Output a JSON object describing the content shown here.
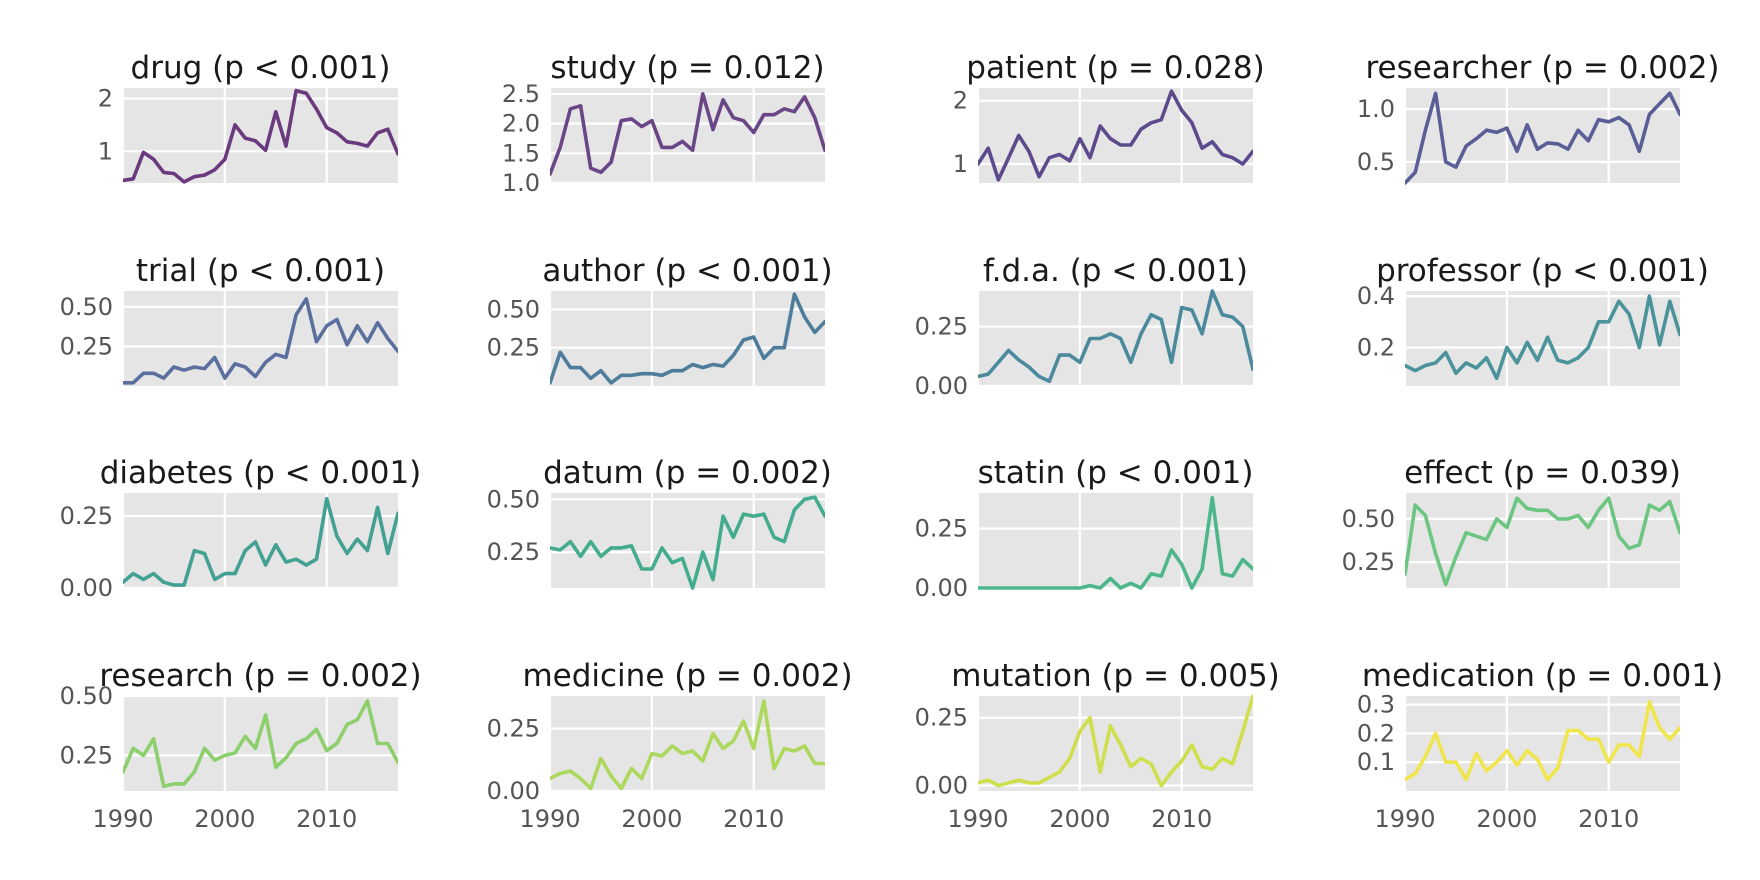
{
  "chart_data": {
    "type": "line",
    "layout": "small-multiples-4x4",
    "shared_x": true,
    "x_years": [
      1990,
      1991,
      1992,
      1993,
      1994,
      1995,
      1996,
      1997,
      1998,
      1999,
      2000,
      2001,
      2002,
      2003,
      2004,
      2005,
      2006,
      2007,
      2008,
      2009,
      2010,
      2011,
      2012,
      2013,
      2014,
      2015,
      2016,
      2017
    ],
    "xlim": [
      1990,
      2017
    ],
    "xticks": [
      1990,
      2000,
      2010
    ],
    "xtick_labels": [
      "1990",
      "2000",
      "2010"
    ],
    "grid": true,
    "background": "#e5e5e5",
    "panels": [
      {
        "title": "drug (p < 0.001)",
        "color": "#6b3a7e",
        "ylim": [
          0.4,
          2.2
        ],
        "yticks": [
          1,
          2
        ],
        "ytick_labels": [
          "1",
          "2"
        ],
        "values": [
          0.45,
          0.48,
          0.98,
          0.85,
          0.6,
          0.58,
          0.42,
          0.52,
          0.55,
          0.65,
          0.85,
          1.5,
          1.25,
          1.2,
          1.02,
          1.75,
          1.1,
          2.15,
          2.1,
          1.8,
          1.45,
          1.35,
          1.18,
          1.15,
          1.1,
          1.35,
          1.42,
          0.95
        ]
      },
      {
        "title": "study (p = 0.012)",
        "color": "#6a4686",
        "ylim": [
          1.0,
          2.6
        ],
        "yticks": [
          1.0,
          1.5,
          2.0,
          2.5
        ],
        "ytick_labels": [
          "1.0",
          "1.5",
          "2.0",
          "2.5"
        ],
        "values": [
          1.15,
          1.6,
          2.25,
          2.3,
          1.25,
          1.18,
          1.35,
          2.05,
          2.08,
          1.95,
          2.05,
          1.6,
          1.6,
          1.7,
          1.55,
          2.5,
          1.9,
          2.4,
          2.1,
          2.05,
          1.85,
          2.15,
          2.15,
          2.25,
          2.2,
          2.45,
          2.1,
          1.55
        ]
      },
      {
        "title": "patient (p = 0.028)",
        "color": "#5d4a8c",
        "ylim": [
          0.7,
          2.2
        ],
        "yticks": [
          1,
          2
        ],
        "ytick_labels": [
          "1",
          "2"
        ],
        "values": [
          1.0,
          1.25,
          0.75,
          1.1,
          1.45,
          1.2,
          0.8,
          1.1,
          1.15,
          1.05,
          1.4,
          1.1,
          1.6,
          1.4,
          1.3,
          1.3,
          1.55,
          1.65,
          1.7,
          2.15,
          1.85,
          1.65,
          1.25,
          1.35,
          1.15,
          1.1,
          1.0,
          1.2
        ]
      },
      {
        "title": "researcher (p = 0.002)",
        "color": "#5a5e96",
        "ylim": [
          0.3,
          1.2
        ],
        "yticks": [
          0.5,
          1.0
        ],
        "ytick_labels": [
          "0.5",
          "1.0"
        ],
        "values": [
          0.3,
          0.4,
          0.8,
          1.15,
          0.5,
          0.45,
          0.65,
          0.72,
          0.8,
          0.78,
          0.82,
          0.6,
          0.85,
          0.62,
          0.68,
          0.67,
          0.62,
          0.8,
          0.7,
          0.9,
          0.88,
          0.92,
          0.85,
          0.6,
          0.95,
          1.05,
          1.15,
          0.95
        ]
      },
      {
        "title": "trial (p < 0.001)",
        "color": "#5a6f9e",
        "ylim": [
          0.0,
          0.6
        ],
        "yticks": [
          0.25,
          0.5
        ],
        "ytick_labels": [
          "0.25",
          "0.50"
        ],
        "values": [
          0.02,
          0.02,
          0.08,
          0.08,
          0.05,
          0.12,
          0.1,
          0.12,
          0.11,
          0.18,
          0.05,
          0.14,
          0.12,
          0.06,
          0.15,
          0.2,
          0.18,
          0.45,
          0.55,
          0.28,
          0.38,
          0.42,
          0.26,
          0.38,
          0.28,
          0.4,
          0.3,
          0.22
        ]
      },
      {
        "title": "author (p < 0.001)",
        "color": "#4e7d9c",
        "ylim": [
          0.0,
          0.62
        ],
        "yticks": [
          0.25,
          0.5
        ],
        "ytick_labels": [
          "0.25",
          "0.50"
        ],
        "values": [
          0.02,
          0.22,
          0.12,
          0.12,
          0.05,
          0.1,
          0.02,
          0.07,
          0.07,
          0.08,
          0.08,
          0.07,
          0.1,
          0.1,
          0.14,
          0.12,
          0.14,
          0.13,
          0.2,
          0.3,
          0.32,
          0.18,
          0.25,
          0.25,
          0.6,
          0.45,
          0.35,
          0.42
        ]
      },
      {
        "title": "f.d.a. (p < 0.001)",
        "color": "#4b8a9d",
        "ylim": [
          0.0,
          0.4
        ],
        "yticks": [
          0.0,
          0.25
        ],
        "ytick_labels": [
          "0.00",
          "0.25"
        ],
        "values": [
          0.04,
          0.05,
          0.1,
          0.15,
          0.11,
          0.08,
          0.04,
          0.02,
          0.13,
          0.13,
          0.1,
          0.2,
          0.2,
          0.22,
          0.2,
          0.1,
          0.22,
          0.3,
          0.28,
          0.1,
          0.33,
          0.32,
          0.22,
          0.4,
          0.3,
          0.29,
          0.25,
          0.07
        ]
      },
      {
        "title": "professor (p < 0.001)",
        "color": "#4a939b",
        "ylim": [
          0.05,
          0.42
        ],
        "yticks": [
          0.2,
          0.4
        ],
        "ytick_labels": [
          "0.2",
          "0.4"
        ],
        "values": [
          0.13,
          0.11,
          0.13,
          0.14,
          0.18,
          0.1,
          0.14,
          0.12,
          0.16,
          0.08,
          0.2,
          0.14,
          0.22,
          0.15,
          0.24,
          0.15,
          0.14,
          0.16,
          0.2,
          0.3,
          0.3,
          0.38,
          0.33,
          0.2,
          0.4,
          0.21,
          0.38,
          0.25
        ]
      },
      {
        "title": "diabetes (p < 0.001)",
        "color": "#42a192",
        "ylim": [
          0.0,
          0.33
        ],
        "yticks": [
          0.0,
          0.25
        ],
        "ytick_labels": [
          "0.00",
          "0.25"
        ],
        "values": [
          0.02,
          0.05,
          0.03,
          0.05,
          0.02,
          0.01,
          0.01,
          0.13,
          0.12,
          0.03,
          0.05,
          0.05,
          0.13,
          0.16,
          0.08,
          0.15,
          0.09,
          0.1,
          0.08,
          0.1,
          0.31,
          0.18,
          0.12,
          0.17,
          0.13,
          0.28,
          0.12,
          0.26
        ]
      },
      {
        "title": "datum (p = 0.002)",
        "color": "#44ac8e",
        "ylim": [
          0.08,
          0.53
        ],
        "yticks": [
          0.25,
          0.5
        ],
        "ytick_labels": [
          "0.25",
          "0.50"
        ],
        "values": [
          0.27,
          0.26,
          0.3,
          0.23,
          0.3,
          0.23,
          0.27,
          0.27,
          0.28,
          0.17,
          0.17,
          0.27,
          0.2,
          0.22,
          0.08,
          0.25,
          0.12,
          0.42,
          0.32,
          0.43,
          0.42,
          0.43,
          0.32,
          0.3,
          0.45,
          0.5,
          0.51,
          0.42
        ]
      },
      {
        "title": "statin (p < 0.001)",
        "color": "#4db68a",
        "ylim": [
          0.0,
          0.4
        ],
        "yticks": [
          0.0,
          0.25
        ],
        "ytick_labels": [
          "0.00",
          "0.25"
        ],
        "values": [
          0.0,
          0.0,
          0.0,
          0.0,
          0.0,
          0.0,
          0.0,
          0.0,
          0.0,
          0.0,
          0.0,
          0.01,
          0.0,
          0.04,
          0.0,
          0.02,
          0.0,
          0.06,
          0.05,
          0.16,
          0.1,
          0.0,
          0.08,
          0.38,
          0.06,
          0.05,
          0.12,
          0.08
        ]
      },
      {
        "title": "effect (p = 0.039)",
        "color": "#6cc682",
        "ylim": [
          0.1,
          0.65
        ],
        "yticks": [
          0.25,
          0.5
        ],
        "ytick_labels": [
          "0.25",
          "0.50"
        ],
        "values": [
          0.18,
          0.58,
          0.52,
          0.3,
          0.12,
          0.28,
          0.42,
          0.4,
          0.38,
          0.5,
          0.45,
          0.62,
          0.56,
          0.55,
          0.55,
          0.5,
          0.5,
          0.52,
          0.45,
          0.55,
          0.62,
          0.4,
          0.33,
          0.35,
          0.58,
          0.55,
          0.6,
          0.42
        ]
      },
      {
        "title": "research (p = 0.002)",
        "color": "#8ccf6c",
        "ylim": [
          0.1,
          0.5
        ],
        "yticks": [
          0.25,
          0.5
        ],
        "ytick_labels": [
          "0.25",
          "0.50"
        ],
        "values": [
          0.18,
          0.28,
          0.25,
          0.32,
          0.12,
          0.13,
          0.13,
          0.18,
          0.28,
          0.23,
          0.25,
          0.26,
          0.33,
          0.28,
          0.42,
          0.2,
          0.24,
          0.3,
          0.32,
          0.36,
          0.27,
          0.3,
          0.38,
          0.4,
          0.48,
          0.3,
          0.3,
          0.22
        ]
      },
      {
        "title": "medicine (p = 0.002)",
        "color": "#acd85c",
        "ylim": [
          0.0,
          0.38
        ],
        "yticks": [
          0.0,
          0.25
        ],
        "ytick_labels": [
          "0.00",
          "0.25"
        ],
        "values": [
          0.05,
          0.07,
          0.08,
          0.05,
          0.01,
          0.13,
          0.06,
          0.01,
          0.09,
          0.05,
          0.15,
          0.14,
          0.18,
          0.15,
          0.16,
          0.12,
          0.23,
          0.17,
          0.2,
          0.28,
          0.17,
          0.36,
          0.09,
          0.17,
          0.16,
          0.18,
          0.11,
          0.11
        ]
      },
      {
        "title": "mutation (p = 0.005)",
        "color": "#cfdf4c",
        "ylim": [
          -0.02,
          0.33
        ],
        "yticks": [
          0.0,
          0.25
        ],
        "ytick_labels": [
          "0.00",
          "0.25"
        ],
        "values": [
          0.01,
          0.02,
          0.0,
          0.01,
          0.02,
          0.01,
          0.01,
          0.03,
          0.05,
          0.1,
          0.2,
          0.25,
          0.05,
          0.22,
          0.15,
          0.07,
          0.1,
          0.08,
          0.0,
          0.05,
          0.09,
          0.15,
          0.07,
          0.06,
          0.1,
          0.08,
          0.2,
          0.33
        ]
      },
      {
        "title": "medication (p = 0.001)",
        "color": "#f0e54a",
        "ylim": [
          0.0,
          0.33
        ],
        "yticks": [
          0.1,
          0.2,
          0.3
        ],
        "ytick_labels": [
          "0.1",
          "0.2",
          "0.3"
        ],
        "values": [
          0.04,
          0.06,
          0.12,
          0.2,
          0.1,
          0.1,
          0.04,
          0.13,
          0.07,
          0.1,
          0.14,
          0.09,
          0.14,
          0.11,
          0.04,
          0.08,
          0.21,
          0.21,
          0.18,
          0.18,
          0.1,
          0.16,
          0.16,
          0.12,
          0.31,
          0.22,
          0.18,
          0.22
        ]
      }
    ]
  }
}
